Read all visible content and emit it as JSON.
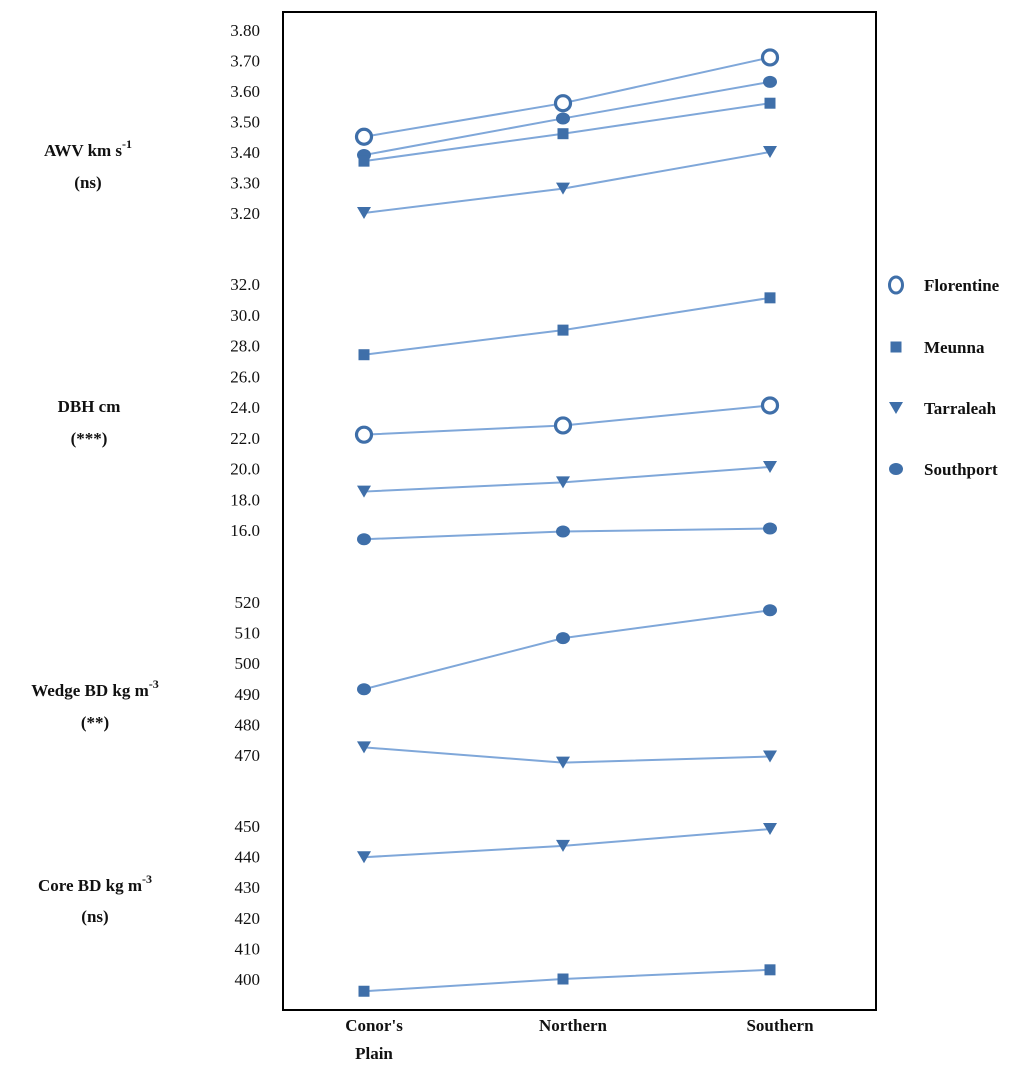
{
  "colors": {
    "line": "#7fa7d9",
    "marker": "#3f6fa9",
    "frame": "#000000"
  },
  "chart_data": {
    "type": "line",
    "categories": [
      "Conor's Plain",
      "Northern",
      "Southern"
    ],
    "legend": [
      {
        "name": "Florentine",
        "marker": "circle-open"
      },
      {
        "name": "Meunna",
        "marker": "square"
      },
      {
        "name": "Tarraleah",
        "marker": "triangle-down"
      },
      {
        "name": "Southport",
        "marker": "circle-filled"
      }
    ],
    "legend_position": "right",
    "panels": [
      {
        "key": "awv",
        "label_main": "AWV km s",
        "label_sup": "-1",
        "significance": "(ns)",
        "ticks": [
          "3.80",
          "3.70",
          "3.60",
          "3.50",
          "3.40",
          "3.30",
          "3.20"
        ],
        "ylim": [
          3.2,
          3.8
        ],
        "series": [
          {
            "name": "Florentine",
            "marker": "circle-open",
            "values": [
              3.45,
              3.56,
              3.71
            ]
          },
          {
            "name": "Southport",
            "marker": "circle-filled",
            "values": [
              3.39,
              3.51,
              3.63
            ]
          },
          {
            "name": "Meunna",
            "marker": "square",
            "values": [
              3.37,
              3.46,
              3.56
            ]
          },
          {
            "name": "Tarraleah",
            "marker": "triangle-down",
            "values": [
              3.2,
              3.28,
              3.4
            ]
          }
        ]
      },
      {
        "key": "dbh",
        "label_main": "DBH cm",
        "label_sup": "",
        "significance": "(***)",
        "ticks": [
          "32.0",
          "30.0",
          "28.0",
          "26.0",
          "24.0",
          "22.0",
          "20.0",
          "18.0",
          "16.0"
        ],
        "ylim": [
          16,
          32
        ],
        "series": [
          {
            "name": "Meunna",
            "marker": "square",
            "values": [
              27.4,
              29.0,
              31.1
            ]
          },
          {
            "name": "Florentine",
            "marker": "circle-open",
            "values": [
              22.2,
              22.8,
              24.1
            ]
          },
          {
            "name": "Tarraleah",
            "marker": "triangle-down",
            "values": [
              18.5,
              19.1,
              20.1
            ]
          },
          {
            "name": "Southport",
            "marker": "circle-filled",
            "values": [
              15.4,
              15.9,
              16.1
            ]
          }
        ]
      },
      {
        "key": "wedge",
        "label_main": "Wedge BD kg m",
        "label_sup": "-3",
        "significance": "(**)",
        "ticks": [
          "520",
          "510",
          "500",
          "490",
          "480",
          "470"
        ],
        "ylim": [
          470,
          520
        ],
        "series": [
          {
            "name": "Southport",
            "marker": "circle-filled",
            "values": [
              491.5,
              508.2,
              517.3
            ]
          },
          {
            "name": "Tarraleah",
            "marker": "triangle-down",
            "values": [
              472.5,
              467.5,
              469.5
            ]
          }
        ]
      },
      {
        "key": "core",
        "label_main": "Core BD kg m",
        "label_sup": "-3",
        "significance": "(ns)",
        "ticks": [
          "450",
          "440",
          "430",
          "420",
          "410",
          "400"
        ],
        "ylim": [
          400,
          450
        ],
        "series": [
          {
            "name": "Tarraleah",
            "marker": "triangle-down",
            "values": [
              439.8,
              443.5,
              449.0
            ]
          },
          {
            "name": "Meunna",
            "marker": "square",
            "values": [
              396.0,
              400.0,
              403.0
            ]
          }
        ]
      }
    ]
  }
}
